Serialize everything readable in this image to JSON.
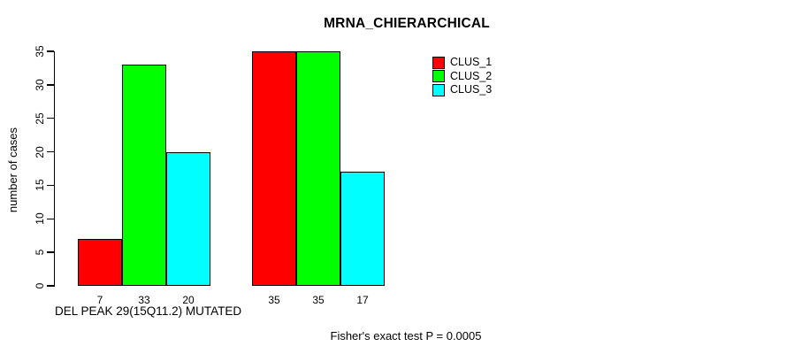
{
  "chart_data": {
    "type": "bar",
    "title": "MRNA_CHIERARCHICAL",
    "ylabel": "number of cases",
    "xlabel": "DEL PEAK 29(15Q11.2) MUTATED",
    "footnote": "Fisher's exact test P = 0.0005",
    "ylim": [
      0,
      35
    ],
    "yticks": [
      0,
      5,
      10,
      15,
      20,
      25,
      30,
      35
    ],
    "grid": false,
    "legend_position": "top-right",
    "series": [
      {
        "name": "CLUS_1",
        "color": "#ff0000",
        "values": [
          7,
          35
        ]
      },
      {
        "name": "CLUS_2",
        "color": "#00ff00",
        "values": [
          33,
          35
        ]
      },
      {
        "name": "CLUS_3",
        "color": "#00ffff",
        "values": [
          20,
          17
        ]
      }
    ],
    "groups": [
      {
        "bar_labels": [
          "7",
          "33",
          "20"
        ]
      },
      {
        "bar_labels": [
          "35",
          "35",
          "17"
        ]
      }
    ]
  }
}
